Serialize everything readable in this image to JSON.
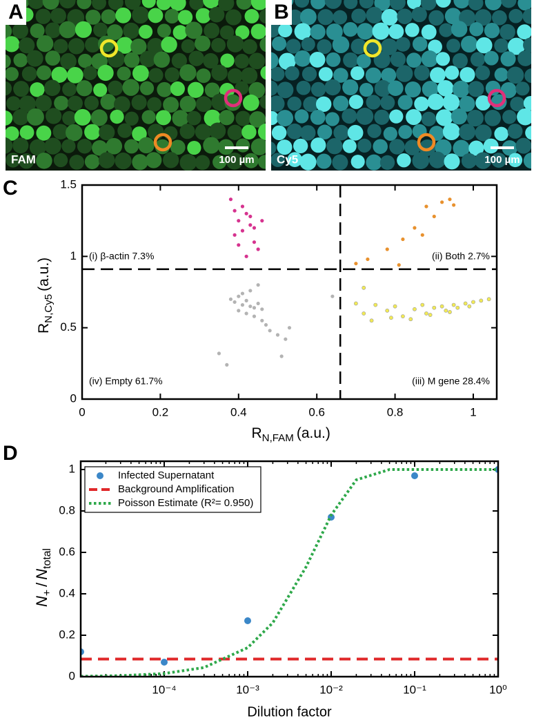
{
  "images": [
    {
      "letter": "A",
      "channel": "FAM",
      "scale": "100 µm"
    },
    {
      "letter": "B",
      "channel": "Cy5",
      "scale": "100 µm"
    }
  ],
  "chart_data": [
    {
      "type": "scatter",
      "panel": "C",
      "xlabel": [
        "R",
        "N,FAM",
        "(a.u.)"
      ],
      "ylabel": [
        "R",
        "N,Cy5",
        "(a.u.)"
      ],
      "xlim": [
        0,
        1.06
      ],
      "ylim": [
        0,
        1.5
      ],
      "xticks": [
        0,
        0.2,
        0.4,
        0.6,
        0.8,
        1
      ],
      "yticks": [
        0,
        0.5,
        1,
        1.5
      ],
      "thresholds": {
        "x": 0.66,
        "y": 0.91
      },
      "annotations": [
        "(i) β-actin 7.3%",
        "(ii) Both 2.7%",
        "(iii) M gene 28.4%",
        "(iv) Empty 61.7%"
      ],
      "series": [
        {
          "color": "#d6338f",
          "x": [
            0.38,
            0.39,
            0.4,
            0.41,
            0.42,
            0.43,
            0.44,
            0.45,
            0.39,
            0.41,
            0.43,
            0.4,
            0.42,
            0.44,
            0.46
          ],
          "values": [
            1.4,
            1.32,
            1.25,
            1.18,
            1.3,
            1.22,
            1.1,
            1.05,
            1.15,
            1.35,
            1.28,
            1.08,
            1.0,
            1.2,
            1.25
          ]
        },
        {
          "color": "#e8912e",
          "x": [
            0.7,
            0.73,
            0.78,
            0.82,
            0.85,
            0.88,
            0.9,
            0.92,
            0.94,
            0.95,
            0.81,
            0.87
          ],
          "values": [
            0.95,
            0.98,
            1.05,
            1.12,
            1.2,
            1.35,
            1.28,
            1.38,
            1.4,
            1.36,
            0.94,
            1.15
          ]
        },
        {
          "color": "#b3b3b3",
          "x": [
            0.38,
            0.39,
            0.4,
            0.41,
            0.42,
            0.43,
            0.44,
            0.45,
            0.4,
            0.42,
            0.44,
            0.46,
            0.47,
            0.48,
            0.5,
            0.52,
            0.35,
            0.37,
            0.41,
            0.43,
            0.53,
            0.46,
            0.64,
            0.51,
            0.45
          ],
          "values": [
            0.7,
            0.68,
            0.72,
            0.66,
            0.69,
            0.65,
            0.64,
            0.67,
            0.62,
            0.6,
            0.58,
            0.55,
            0.52,
            0.48,
            0.45,
            0.42,
            0.32,
            0.24,
            0.74,
            0.76,
            0.5,
            0.63,
            0.72,
            0.3,
            0.8
          ]
        },
        {
          "color": "#f2ea55",
          "x": [
            0.7,
            0.72,
            0.75,
            0.78,
            0.8,
            0.82,
            0.85,
            0.87,
            0.88,
            0.9,
            0.92,
            0.93,
            0.95,
            0.96,
            0.98,
            1.0,
            1.02,
            1.04,
            0.74,
            0.79,
            0.84,
            0.89,
            0.94,
            0.99,
            0.72
          ],
          "values": [
            0.67,
            0.6,
            0.66,
            0.62,
            0.65,
            0.58,
            0.63,
            0.66,
            0.6,
            0.64,
            0.65,
            0.62,
            0.66,
            0.64,
            0.67,
            0.68,
            0.69,
            0.7,
            0.55,
            0.57,
            0.56,
            0.59,
            0.61,
            0.65,
            0.78
          ]
        }
      ]
    },
    {
      "type": "scatter",
      "panel": "D",
      "xlabel": "Dilution factor",
      "ylabel": [
        "N",
        "+",
        "/",
        "N",
        "total"
      ],
      "xscale": "log",
      "xlim": [
        1e-05,
        1
      ],
      "ylim": [
        0,
        1.04
      ],
      "xticks": [
        {
          "value": 0.0001,
          "label": "10⁻⁴"
        },
        {
          "value": 0.001,
          "label": "10⁻³"
        },
        {
          "value": 0.01,
          "label": "10⁻²"
        },
        {
          "value": 0.1,
          "label": "10⁻¹"
        },
        {
          "value": 1,
          "label": "10⁰"
        }
      ],
      "yticks": [
        0,
        0.2,
        0.4,
        0.6,
        0.8,
        1
      ],
      "legend": "upper left",
      "series": [
        {
          "name": "Infected Supernatant",
          "color": "#3b87c8",
          "style": "markers",
          "x": [
            1e-05,
            0.0001,
            0.001,
            0.01,
            0.1,
            1
          ],
          "values": [
            0.12,
            0.07,
            0.27,
            0.77,
            0.97,
            1.0
          ]
        },
        {
          "name": "Background Amplification",
          "color": "#e0282a",
          "style": "dashed",
          "x": [
            1e-05,
            1
          ],
          "values": [
            0.085,
            0.085
          ]
        },
        {
          "name": "Poisson Estimate (R²= 0.950)",
          "color": "#2ea84a",
          "style": "dotted",
          "x": [
            1e-05,
            3e-05,
            0.0001,
            0.0003,
            0.001,
            0.002,
            0.005,
            0.01,
            0.02,
            0.05,
            0.1,
            1
          ],
          "values": [
            0.0015,
            0.0045,
            0.015,
            0.044,
            0.14,
            0.26,
            0.53,
            0.78,
            0.95,
            1.0,
            1.0,
            1.0
          ]
        }
      ]
    }
  ]
}
